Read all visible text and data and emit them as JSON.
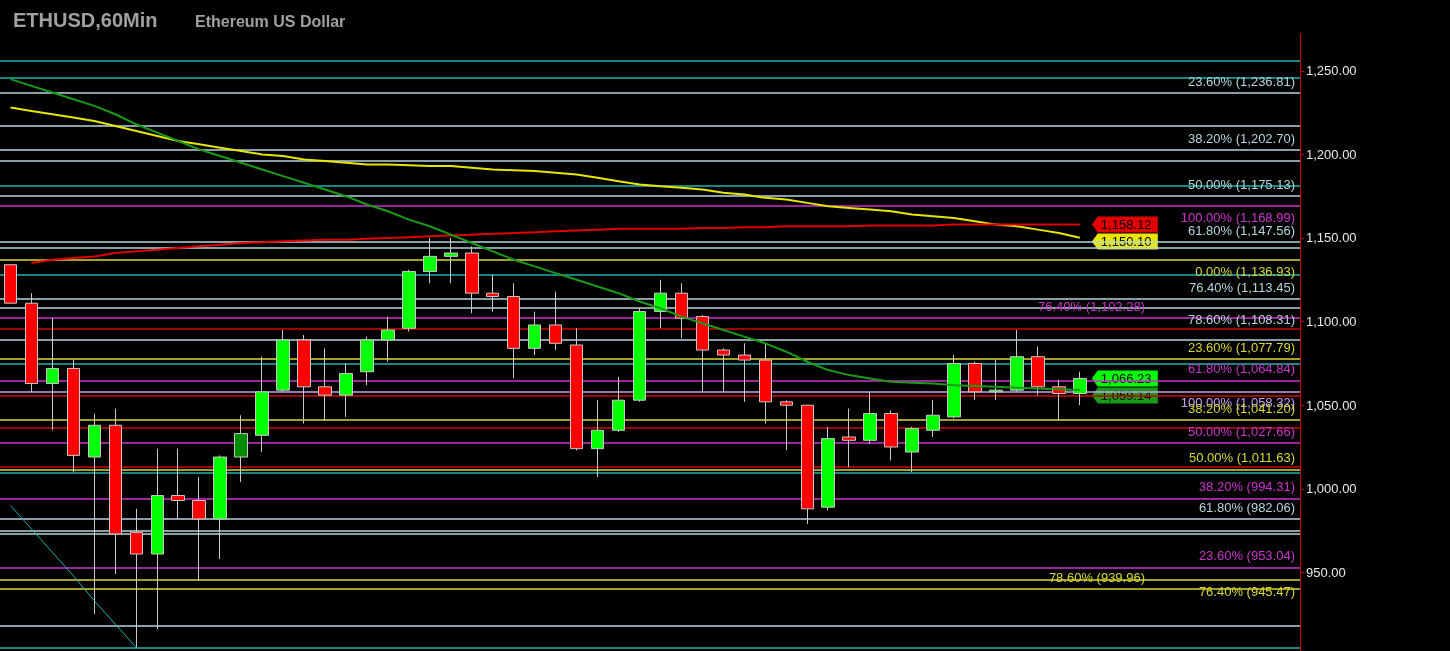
{
  "chart_data": {
    "type": "candlestick",
    "title": "ETHUSD,60Min",
    "subtitle": "Ethereum US Dollar",
    "categories": [
      null,
      null,
      null,
      null,
      null,
      null,
      null,
      null,
      null,
      null,
      null,
      null,
      null,
      null,
      null,
      null,
      null,
      null,
      null,
      null,
      null,
      null,
      null,
      null,
      null,
      null,
      null,
      null,
      null,
      null,
      null,
      null,
      null,
      null,
      null,
      null,
      null,
      null,
      null,
      null,
      null,
      null,
      null,
      null,
      null,
      null,
      null,
      null,
      null,
      null,
      null,
      null
    ],
    "ohlc": [
      [
        1134,
        1134,
        1111,
        1111
      ],
      [
        1111,
        1117,
        1058,
        1063
      ],
      [
        1063,
        1102,
        1035,
        1072
      ],
      [
        1072,
        1077,
        1010,
        1020
      ],
      [
        1019,
        1045,
        925,
        1038
      ],
      [
        1038,
        1048,
        949,
        973
      ],
      [
        974,
        988,
        905,
        961
      ],
      [
        961,
        1024,
        916,
        996
      ],
      [
        996,
        1024,
        982,
        993
      ],
      [
        993,
        1007,
        945,
        982
      ],
      [
        982,
        1020,
        958,
        1019
      ],
      [
        1019,
        1044,
        1004,
        1033
      ],
      [
        1032,
        1079,
        1022,
        1058
      ],
      [
        1059,
        1095,
        1058,
        1089
      ],
      [
        1089,
        1092,
        1039,
        1061
      ],
      [
        1061,
        1084,
        1041,
        1056
      ],
      [
        1056,
        1075,
        1043,
        1069
      ],
      [
        1070,
        1091,
        1062,
        1089
      ],
      [
        1089,
        1103,
        1076,
        1095
      ],
      [
        1096,
        1131,
        1094,
        1130
      ],
      [
        1130,
        1150,
        1123,
        1139
      ],
      [
        1139,
        1150,
        1123,
        1141
      ],
      [
        1141,
        1145,
        1105,
        1117
      ],
      [
        1117,
        1128,
        1106,
        1115
      ],
      [
        1115,
        1123,
        1066,
        1084
      ],
      [
        1084,
        1106,
        1080,
        1098
      ],
      [
        1098,
        1118,
        1083,
        1087
      ],
      [
        1086,
        1096,
        1023,
        1024
      ],
      [
        1024,
        1053,
        1007,
        1035
      ],
      [
        1035,
        1067,
        1034,
        1053
      ],
      [
        1053,
        1108,
        1052,
        1106
      ],
      [
        1106,
        1125,
        1096,
        1117
      ],
      [
        1117,
        1123,
        1090,
        1102
      ],
      [
        1103,
        1104,
        1058,
        1083
      ],
      [
        1083,
        1084,
        1058,
        1080
      ],
      [
        1080,
        1087,
        1052,
        1077
      ],
      [
        1077,
        1087,
        1039,
        1052
      ],
      [
        1052,
        1053,
        1023,
        1050
      ],
      [
        1050,
        1050,
        979,
        988
      ],
      [
        989,
        1037,
        987,
        1030
      ],
      [
        1031,
        1048,
        1013,
        1029
      ],
      [
        1029,
        1058,
        1027,
        1045
      ],
      [
        1045,
        1047,
        1017,
        1025
      ],
      [
        1022,
        1037,
        1010,
        1036
      ],
      [
        1035,
        1053,
        1031,
        1044
      ],
      [
        1043,
        1080,
        1042,
        1075
      ],
      [
        1075,
        1076,
        1053,
        1058
      ],
      [
        1058,
        1077,
        1053,
        1059
      ],
      [
        1059,
        1095,
        1058,
        1079
      ],
      [
        1079,
        1085,
        1056,
        1061
      ],
      [
        1061,
        1065,
        1041,
        1057
      ],
      [
        1057,
        1070,
        1050,
        1066
      ]
    ],
    "colors": [
      "#ff0000",
      "#ff0000",
      "#00ff00",
      "#ff0000",
      "#00ff00",
      "#ff0000",
      "#ff0000",
      "#00ff00",
      "#ff0000",
      "#ff0000",
      "#00ff00",
      "#008c00",
      "#00ff00",
      "#00ff00",
      "#ff0000",
      "#ff0000",
      "#00ff00",
      "#00ff00",
      "#00ff00",
      "#00ff00",
      "#00ff00",
      "#00ff00",
      "#ff0000",
      "#ff0000",
      "#ff0000",
      "#00ff00",
      "#ff0000",
      "#ff0000",
      "#00ff00",
      "#00ff00",
      "#00ff00",
      "#00ff00",
      "#ff0000",
      "#ff0000",
      "#ff0000",
      "#ff0000",
      "#ff0000",
      "#ff0000",
      "#ff0000",
      "#00ff00",
      "#ff0000",
      "#00ff00",
      "#ff0000",
      "#00ff00",
      "#00ff00",
      "#00ff00",
      "#ff0000",
      "#00ff00",
      "#00ff00",
      "#ff0000",
      "#ff0000",
      "#00ff00"
    ],
    "series": [
      {
        "type": "line",
        "color": "#e6e600",
        "values": [
          1228,
          1226,
          1224,
          1222,
          1220,
          1217,
          1214,
          1211,
          1208,
          1206,
          1204,
          1202,
          1200,
          1199,
          1197,
          1196,
          1195,
          1194,
          1194,
          1193.5,
          1193,
          1193,
          1192,
          1191,
          1190.5,
          1190,
          1189,
          1188,
          1186,
          1184,
          1182,
          1181,
          1180,
          1179,
          1177,
          1176,
          1174,
          1173,
          1171,
          1169,
          1168,
          1167,
          1166,
          1164,
          1163,
          1162,
          1160,
          1158,
          1157,
          1155,
          1153,
          1150.1
        ],
        "value_labels": [
          null,
          null,
          null,
          null,
          null,
          null,
          null,
          null,
          null,
          null,
          null,
          null,
          null,
          null,
          null,
          null,
          null,
          null,
          null,
          null,
          null,
          null,
          null,
          null,
          null,
          null,
          null,
          null,
          null,
          null,
          null,
          null,
          null,
          null,
          null,
          null,
          null,
          null,
          null,
          null,
          null,
          null,
          null,
          null,
          null,
          null,
          null,
          null,
          null,
          null,
          null,
          "1,150.10"
        ]
      },
      {
        "type": "line",
        "color": "#e00000",
        "values": [
          null,
          1135,
          1137,
          1138,
          1139,
          1141,
          1142,
          1143,
          1144,
          1145,
          1146,
          1147,
          1147.5,
          1148,
          1148.5,
          1149,
          1149,
          1149.5,
          1150,
          1150.5,
          1151,
          1151.5,
          1152,
          1152.5,
          1153,
          1153.5,
          1154,
          1154.5,
          1155,
          1155.5,
          1155.5,
          1155.5,
          1155.5,
          1156,
          1156,
          1156.5,
          1156.5,
          1157,
          1157,
          1157,
          1157,
          1157.5,
          1157.5,
          1157.5,
          1157.5,
          1158,
          1158,
          1158,
          1158,
          1158,
          1158,
          1158.12
        ],
        "value_labels": [
          null,
          null,
          null,
          null,
          null,
          null,
          null,
          null,
          null,
          null,
          null,
          null,
          null,
          null,
          null,
          null,
          null,
          null,
          null,
          null,
          null,
          null,
          null,
          null,
          null,
          null,
          null,
          null,
          null,
          null,
          null,
          null,
          null,
          null,
          null,
          null,
          null,
          null,
          null,
          null,
          null,
          null,
          null,
          null,
          null,
          null,
          null,
          null,
          null,
          null,
          null,
          "1,158.12"
        ]
      },
      {
        "type": "line",
        "color": "#1a9a1a",
        "values": [
          1245,
          1241,
          1237,
          1233,
          1229,
          1224,
          1218,
          1213,
          1208,
          1203,
          1199,
          1195,
          1191,
          1187,
          1183,
          1179,
          1175,
          1170,
          1166,
          1161,
          1157,
          1152,
          1147,
          1142,
          1137,
          1133,
          1129,
          1125,
          1121,
          1117,
          1112,
          1108,
          1103,
          1099,
          1095,
          1091,
          1087,
          1082,
          1076,
          1071,
          1068,
          1066,
          1064,
          1063.5,
          1063,
          1062,
          1061.5,
          1061,
          1060.5,
          1060,
          1059.5,
          1059.14
        ],
        "value_labels": [
          null,
          null,
          null,
          null,
          null,
          null,
          null,
          null,
          null,
          null,
          null,
          null,
          null,
          null,
          null,
          null,
          null,
          null,
          null,
          null,
          null,
          null,
          null,
          null,
          null,
          null,
          null,
          null,
          null,
          null,
          null,
          null,
          null,
          null,
          null,
          null,
          null,
          null,
          null,
          null,
          null,
          null,
          null,
          null,
          null,
          null,
          null,
          null,
          null,
          null,
          null,
          "1,059.14"
        ]
      },
      {
        "type": "line",
        "color": "#20b2b2",
        "values": [
          990,
          976,
          962,
          948,
          933,
          919,
          905,
          null,
          null,
          null,
          null,
          null,
          null,
          null,
          null,
          null,
          null,
          null,
          null,
          null,
          null,
          null,
          null,
          null,
          null,
          null,
          null,
          null,
          null,
          null,
          null,
          null,
          null,
          null,
          null,
          null,
          null,
          null,
          null,
          null,
          null,
          null,
          null,
          null,
          null,
          null,
          null,
          null,
          null,
          null,
          null,
          null
        ]
      }
    ],
    "ylim": [
      903,
      1272
    ],
    "yticks": [
      {
        "value": 950,
        "label": "950.00"
      },
      {
        "value": 1000,
        "label": "1,000.00"
      },
      {
        "value": 1050,
        "label": "1,050.00"
      },
      {
        "value": 1100,
        "label": "1,100.00"
      },
      {
        "value": 1150,
        "label": "1,150.00"
      },
      {
        "value": 1200,
        "label": "1,200.00"
      },
      {
        "value": 1250,
        "label": "1,250.00"
      }
    ],
    "tick_labels": "y",
    "annotations": [
      "1,066.23"
    ],
    "ref_lines": [
      {
        "axis": "y",
        "value": 1256,
        "color": "#20b2b2"
      },
      {
        "axis": "y",
        "value": 1246,
        "color": "#20b2b2"
      },
      {
        "axis": "y",
        "value": 1236.81,
        "label": "23.60% (1,236.81)",
        "color": "#b4d4dc"
      },
      {
        "axis": "y",
        "value": 1217,
        "color": "#b4d4dc"
      },
      {
        "axis": "y",
        "value": 1202.7,
        "label": "38.20% (1,202.70)",
        "color": "#b4d4dc"
      },
      {
        "axis": "y",
        "value": 1196,
        "color": "#b4d4dc"
      },
      {
        "axis": "y",
        "value": 1181,
        "color": "#20b2b2"
      },
      {
        "axis": "y",
        "value": 1175.13,
        "label": "50.00% (1,175.13)",
        "color": "#b4d4dc"
      },
      {
        "axis": "y",
        "value": 1168.99,
        "label": "100.00% (1,168.99)",
        "color": "#cc33cc"
      },
      {
        "axis": "y",
        "value": 1147.56,
        "label": "61.80% (1,147.56)",
        "color": "#b4d4dc"
      },
      {
        "axis": "y",
        "value": 1144,
        "color": "#b4d4dc"
      },
      {
        "axis": "y",
        "value": 1136.93,
        "label": "0.00% (1,136.93)",
        "color": "#d8d830"
      },
      {
        "axis": "y",
        "value": 1128,
        "color": "#20b2b2"
      },
      {
        "axis": "y",
        "value": 1113.45,
        "label": "76.40% (1,113.45)",
        "color": "#b4d4dc"
      },
      {
        "axis": "y",
        "value": 1108.31,
        "label": "78.60% (1,108.31)",
        "color": "#b4d4dc"
      },
      {
        "axis": "y",
        "value": 1102.28,
        "label": "76.40% (1,102.28)",
        "color": "#cc33cc"
      },
      {
        "axis": "y",
        "value": 1096,
        "color": "#d00000"
      },
      {
        "axis": "y",
        "value": 1089.4,
        "color": "#b4d4dc"
      },
      {
        "axis": "y",
        "value": 1077.79,
        "label": "23.60% (1,077.79)",
        "color": "#d8d830"
      },
      {
        "axis": "y",
        "value": 1075,
        "color": "#20b2b2"
      },
      {
        "axis": "y",
        "value": 1064.84,
        "label": "61.80% (1,064.84)",
        "color": "#cc33cc"
      },
      {
        "axis": "y",
        "value": 1058.32,
        "label": "100.00% (1,058.32)",
        "color": "#c8a0f0"
      },
      {
        "axis": "y",
        "value": 1055.5,
        "color": "#d00000"
      },
      {
        "axis": "y",
        "value": 1041.2,
        "label": "38.20% (1,041.20)",
        "color": "#d8d830"
      },
      {
        "axis": "y",
        "value": 1036.8,
        "color": "#d00000"
      },
      {
        "axis": "y",
        "value": 1027.66,
        "label": "50.00% (1,027.66)",
        "color": "#cc33cc"
      },
      {
        "axis": "y",
        "value": 1013,
        "color": "#d00000"
      },
      {
        "axis": "y",
        "value": 1011.63,
        "label": "50.00% (1,011.63)",
        "color": "#d8d830"
      },
      {
        "axis": "y",
        "value": 1009.6,
        "color": "#20b2b2"
      },
      {
        "axis": "y",
        "value": 994.31,
        "label": "38.20% (994.31)",
        "color": "#cc33cc"
      },
      {
        "axis": "y",
        "value": 982.06,
        "label": "61.80% (982.06)",
        "color": "#b4d4dc"
      },
      {
        "axis": "y",
        "value": 975,
        "color": "#b4d4dc"
      },
      {
        "axis": "y",
        "value": 973.4,
        "color": "#b4d4dc"
      },
      {
        "axis": "y",
        "value": 953.04,
        "label": "23.60% (953.04)",
        "color": "#cc33cc"
      },
      {
        "axis": "y",
        "value": 945.47,
        "label": "76.40% (945.47)",
        "color": "#d8d830"
      },
      {
        "axis": "y",
        "value": 939.96,
        "label": "78.60% (939.96)",
        "color": "#d8d830"
      },
      {
        "axis": "y",
        "value": 918,
        "color": "#b4d4dc"
      },
      {
        "axis": "y",
        "value": 905,
        "color": "#20b2b2"
      }
    ]
  }
}
